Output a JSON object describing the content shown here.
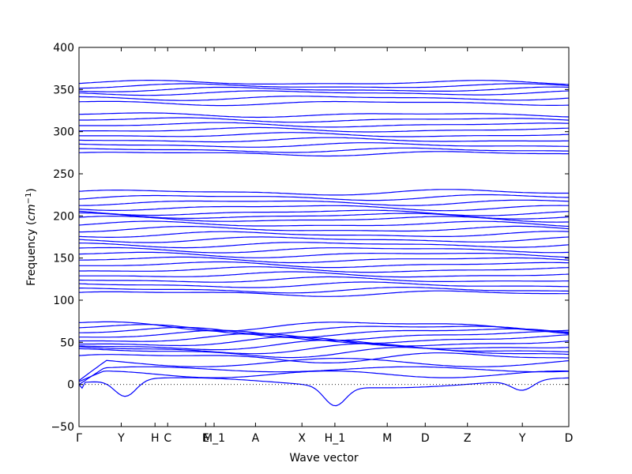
{
  "chart_data": {
    "type": "line",
    "xlabel": "Wave vector",
    "ylabel": "Frequency ($cm^{-1}$)",
    "ylim": [
      -50,
      400
    ],
    "yticks": [
      -50,
      0,
      50,
      100,
      150,
      200,
      250,
      300,
      350,
      400
    ],
    "xticks": [
      {
        "label": "Γ",
        "x": 0
      },
      {
        "label": "Y",
        "x": 0.5
      },
      {
        "label": "H",
        "x": 0.9
      },
      {
        "label": "C",
        "x": 1.05
      },
      {
        "label": "E",
        "x": 1.5
      },
      {
        "label": "M_1",
        "x": 1.6
      },
      {
        "label": "A",
        "x": 2.09
      },
      {
        "label": "X",
        "x": 2.64
      },
      {
        "label": "H_1",
        "x": 3.03
      },
      {
        "label": "M",
        "x": 3.65
      },
      {
        "label": "D",
        "x": 4.1
      },
      {
        "label": "Z",
        "x": 4.6
      },
      {
        "label": "Y",
        "x": 5.25
      },
      {
        "label": "D",
        "x": 5.8
      }
    ],
    "xlim": [
      0,
      5.8
    ],
    "grid": false,
    "zero_line": true,
    "series_color": "#0000ff",
    "bands": {
      "low_flat": [
        32,
        38,
        42,
        46,
        50,
        54,
        58,
        62,
        66,
        70
      ],
      "mid_flat": [
        108,
        112,
        118,
        124,
        130,
        136,
        142,
        148,
        154,
        160,
        166,
        172,
        178,
        184,
        190,
        196,
        200,
        204,
        210,
        216,
        222,
        228
      ],
      "high_flat": [
        274,
        278,
        284,
        290,
        296,
        302,
        308,
        314,
        320,
        334,
        340,
        346,
        350,
        354,
        358
      ]
    },
    "acoustic_dips": [
      {
        "x": 0.55,
        "y": -12
      },
      {
        "x": 3.03,
        "y": -15
      },
      {
        "x": 5.25,
        "y": -4
      }
    ]
  }
}
